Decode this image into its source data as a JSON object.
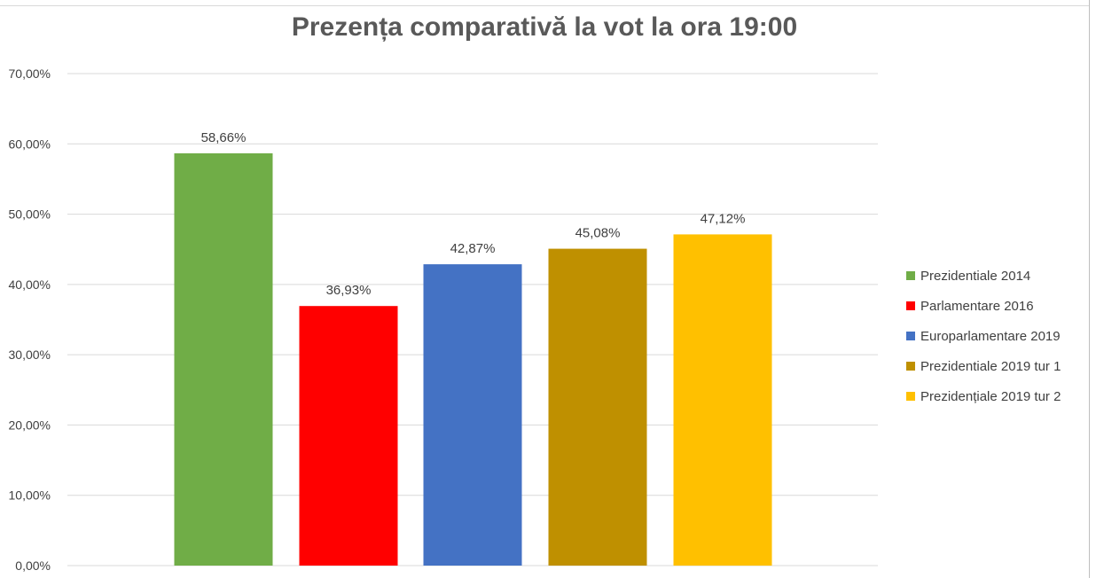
{
  "chart_data": {
    "type": "bar",
    "title": "Prezența comparativă la vot la ora 19:00",
    "categories": [
      "Prezidentiale 2014",
      "Parlamentare 2016",
      "Europarlamentare 2019",
      "Prezidentiale 2019 tur 1",
      "Prezidențiale 2019 tur 2"
    ],
    "values": [
      58.66,
      36.93,
      42.87,
      45.08,
      47.12
    ],
    "data_labels": [
      "58,66%",
      "36,93%",
      "42,87%",
      "45,08%",
      "47,12%"
    ],
    "colors": [
      "#70ad47",
      "#ff0000",
      "#4472c4",
      "#bf9000",
      "#ffc000"
    ],
    "ylim": [
      0,
      70
    ],
    "yticks": [
      0,
      10,
      20,
      30,
      40,
      50,
      60,
      70
    ],
    "ytick_labels": [
      "0,00%",
      "10,00%",
      "20,00%",
      "30,00%",
      "40,00%",
      "50,00%",
      "60,00%",
      "70,00%"
    ],
    "grid": true,
    "legend_position": "right",
    "xlabel": "",
    "ylabel": ""
  }
}
